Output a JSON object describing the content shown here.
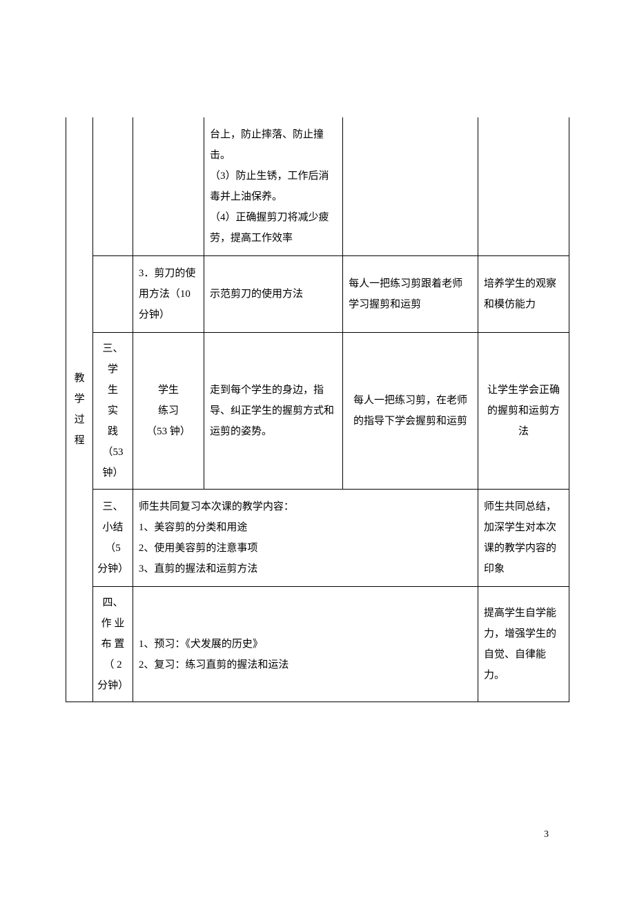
{
  "sidebar": {
    "label_chars": [
      "教",
      "学",
      "过",
      "程"
    ]
  },
  "rows": [
    {
      "col2": "",
      "col3": "",
      "col4": "台上，防止摔落、防止撞击。\n（3）防止生锈，工作后消毒并上油保养。\n（4）正确握剪刀将减少疲劳，提高工作效率",
      "col5": "",
      "col6": ""
    },
    {
      "col2": "",
      "col3": "3．剪刀的使用方法（10 分钟）",
      "col4": "示范剪刀的使用方法",
      "col5": "每人一把练习剪跟着老师学习握剪和运剪",
      "col6": "培养学生的观察和模仿能力"
    },
    {
      "col2_chars": [
        "三、",
        "学",
        "生",
        "实",
        "践",
        "（53",
        "钟）"
      ],
      "col3": "学生\n练习\n（53 钟）",
      "col4": "走到每个学生的身边，指导、纠正学生的握剪方式和运剪的姿势。",
      "col5": "每人一把练习剪，在老师的指导下学会握剪和运剪",
      "col6": "让学生学会正确的握剪和运剪方法"
    },
    {
      "col2_chars": [
        "三、",
        "小结",
        "（5",
        "分钟）"
      ],
      "merged_content": "师生共同复习本次课的教学内容：\n1、美容剪的分类和用途\n2、使用美容剪的注意事项\n3、直剪的握法和运剪方法",
      "col6": "师生共同总结，加深学生对本次课的教学内容的印象"
    },
    {
      "col2_chars": [
        "四、",
        "作 业",
        "布 置",
        "（ 2",
        "分钟）"
      ],
      "merged_content": "\n1、预习：《犬发展的历史》\n2、复习：练习直剪的握法和运法",
      "col6": "提高学生自学能力，增强学生的自觉、自律能力。"
    }
  ],
  "page_number": "3"
}
